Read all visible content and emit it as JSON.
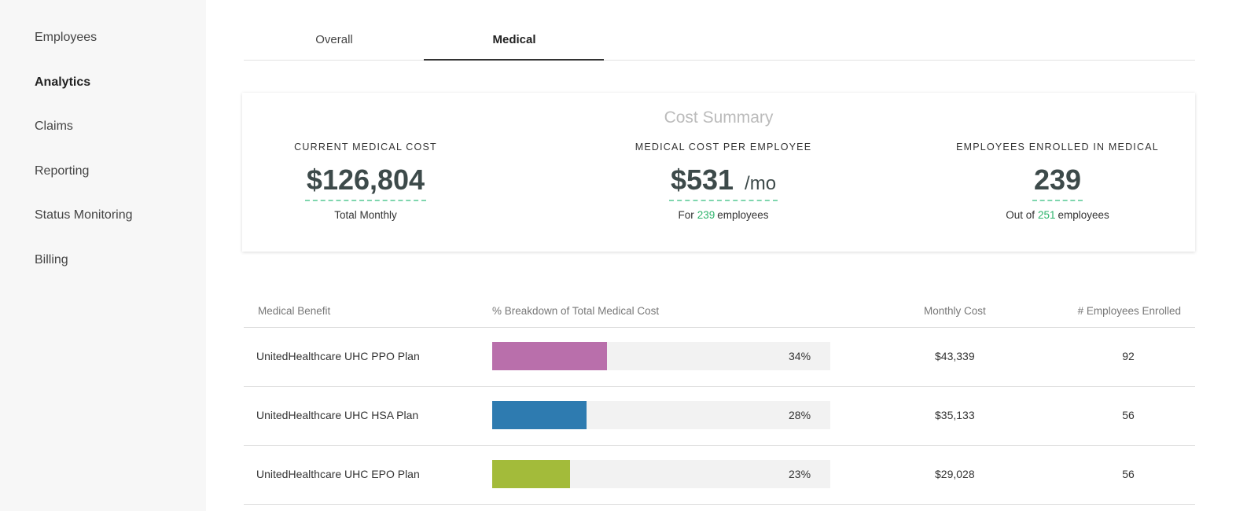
{
  "sidebar": {
    "items": [
      "Employees",
      "Analytics",
      "Claims",
      "Reporting",
      "Status Monitoring",
      "Billing"
    ],
    "active": 1
  },
  "tabs": {
    "items": [
      "Overall",
      "Medical"
    ],
    "active": 1
  },
  "summary": {
    "title": "Cost Summary",
    "metrics": [
      {
        "label": "CURRENT MEDICAL COST",
        "value": "$126,804",
        "note": "Total Monthly"
      },
      {
        "label": "MEDICAL COST PER EMPLOYEE",
        "value": "$531",
        "unit": "/mo",
        "note_prefix": "For",
        "note_highlight": "239",
        "note_suffix": "employees"
      },
      {
        "label": "EMPLOYEES ENROLLED IN MEDICAL",
        "value": "239",
        "note_prefix": "Out of",
        "note_highlight": "251",
        "note_suffix": "employees"
      }
    ]
  },
  "table": {
    "headers": [
      "Medical Benefit",
      "% Breakdown of Total Medical Cost",
      "Monthly Cost",
      "# Employees Enrolled"
    ],
    "rows": [
      {
        "benefit": "UnitedHealthcare UHC PPO Plan",
        "percent": 34,
        "percent_label": "34%",
        "color": "#b96fab",
        "monthly_cost": "$43,339",
        "enrolled": "92"
      },
      {
        "benefit": "UnitedHealthcare UHC HSA Plan",
        "percent": 28,
        "percent_label": "28%",
        "color": "#2e7bb0",
        "monthly_cost": "$35,133",
        "enrolled": "56"
      },
      {
        "benefit": "UnitedHealthcare UHC EPO Plan",
        "percent": 23,
        "percent_label": "23%",
        "color": "#a3bb3a",
        "monthly_cost": "$29,028",
        "enrolled": "56"
      }
    ]
  }
}
